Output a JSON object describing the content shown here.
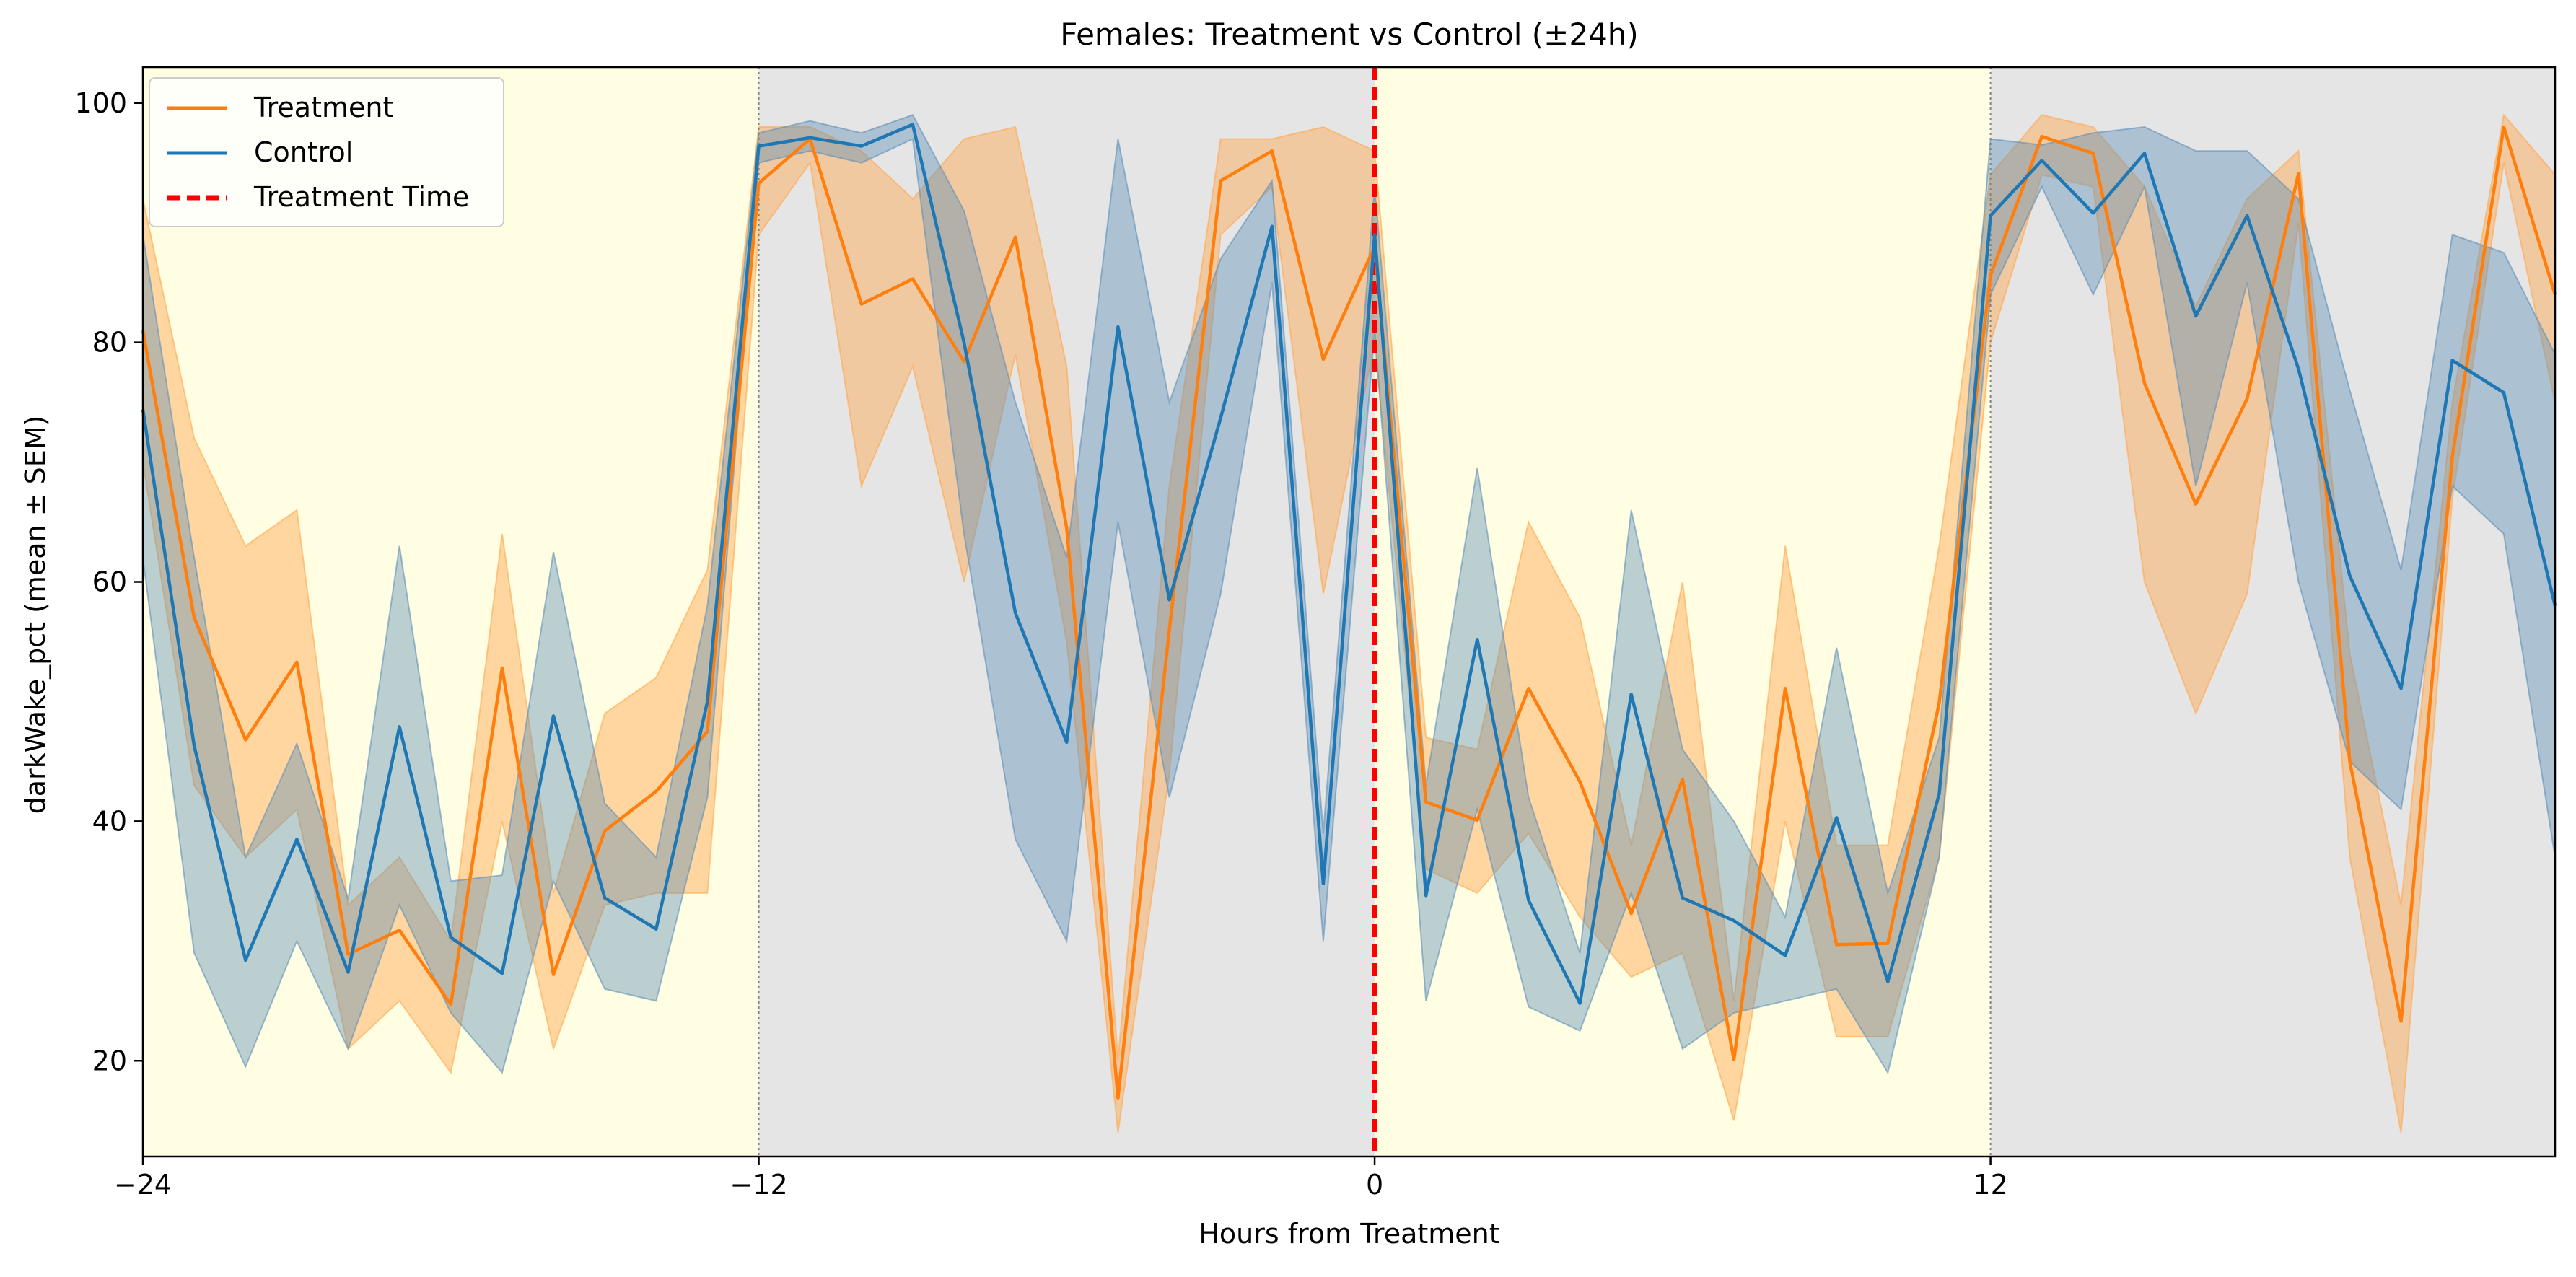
{
  "chart_data": {
    "type": "line",
    "title": "Females: Treatment vs Control (±24h)",
    "xlabel": "Hours from Treatment",
    "ylabel": "darkWake_pct (mean ± SEM)",
    "xlim": [
      -24,
      23
    ],
    "ylim": [
      12,
      103
    ],
    "xticks": [
      -24,
      -12,
      0,
      12
    ],
    "xtick_labels": [
      "−24",
      "−12",
      "0",
      "12"
    ],
    "yticks": [
      20,
      40,
      60,
      80,
      100
    ],
    "ytick_labels": [
      "20",
      "40",
      "60",
      "80",
      "100"
    ],
    "grid": false,
    "legend_position": "upper-left",
    "background_periods": [
      {
        "phase": "light",
        "start": -24,
        "end": -12,
        "color": "#fffee3"
      },
      {
        "phase": "dark",
        "start": -12,
        "end": 0,
        "color": "#e5e5e5"
      },
      {
        "phase": "light",
        "start": 0,
        "end": 12,
        "color": "#fffee3"
      },
      {
        "phase": "dark",
        "start": 12,
        "end": 23,
        "color": "#e5e5e5"
      }
    ],
    "x": [
      -24,
      -23,
      -22,
      -21,
      -20,
      -19,
      -18,
      -17,
      -16,
      -15,
      -14,
      -13,
      -12,
      -11,
      -10,
      -9,
      -8,
      -7,
      -6,
      -5,
      -4,
      -3,
      -2,
      -1,
      0,
      1,
      2,
      3,
      4,
      5,
      6,
      7,
      8,
      9,
      10,
      11,
      12,
      13,
      14,
      15,
      16,
      17,
      18,
      19,
      20,
      21,
      22,
      23
    ],
    "series": [
      {
        "name": "Treatment",
        "color": "#ff7f0e",
        "fill_color": "#ffa64d",
        "values": [
          81,
          57,
          46.8,
          53.3,
          28.9,
          30.9,
          24.7,
          52.8,
          27.2,
          39.2,
          42.5,
          47.5,
          93.3,
          97,
          83.2,
          85.3,
          78.4,
          88.8,
          64.5,
          16.9,
          56,
          93.5,
          96,
          78.6,
          88,
          41.6,
          40.1,
          51.1,
          43.3,
          32.3,
          43.5,
          20.1,
          51.1,
          29.7,
          29.8,
          49.9,
          85.6,
          97.2,
          95.8,
          76.6,
          66.5,
          75.3,
          94.1,
          45,
          23.3,
          70.5,
          98,
          84
        ],
        "lower": [
          70,
          43,
          37,
          41,
          21,
          25,
          19,
          40,
          21,
          33,
          34,
          34,
          89,
          95,
          68,
          78,
          60,
          79,
          55,
          14,
          44,
          89,
          93,
          59,
          80,
          36,
          34,
          39,
          32,
          27,
          29,
          15,
          40,
          22,
          22,
          37,
          80,
          94,
          93,
          60,
          49,
          59,
          90,
          37,
          14,
          67,
          95,
          75
        ],
        "upper": [
          92,
          72,
          63,
          66,
          33,
          37,
          30,
          64,
          34,
          49,
          52,
          61,
          98,
          98,
          96,
          92,
          97,
          98,
          78,
          20,
          68,
          97,
          97,
          98,
          96,
          47,
          46,
          65,
          57,
          38,
          60,
          25,
          63,
          38,
          38,
          63,
          94,
          99,
          98,
          93,
          83,
          92,
          96,
          54,
          33,
          75,
          99,
          94
        ]
      },
      {
        "name": "Control",
        "color": "#1f77b4",
        "fill_color": "#5d8fb8",
        "values": [
          74.4,
          46.3,
          28.4,
          38.5,
          27.4,
          47.9,
          30.3,
          27.3,
          48.8,
          33.6,
          31,
          50,
          96.4,
          97.1,
          96.4,
          98.2,
          80,
          57.4,
          46.6,
          81.3,
          58.5,
          73.7,
          89.7,
          34.8,
          89,
          33.8,
          55.2,
          33.4,
          24.8,
          50.6,
          33.6,
          31.7,
          28.8,
          40.3,
          26.6,
          42.3,
          90.6,
          95.2,
          90.8,
          95.8,
          82.2,
          90.6,
          77.8,
          60.5,
          51.1,
          78.5,
          75.8,
          58
        ]
      }
    ],
    "control_band": {
      "lower": [
        62,
        29,
        19.5,
        30,
        21,
        33,
        24,
        19,
        35,
        26,
        25,
        42,
        95,
        96,
        95,
        97,
        64,
        38.5,
        30,
        65,
        42,
        59,
        85,
        30,
        81,
        25,
        41,
        24.5,
        22.5,
        34,
        21,
        24,
        25,
        26,
        19,
        37,
        84,
        93,
        84,
        93,
        68,
        85,
        60,
        45,
        41,
        68,
        64,
        37
      ],
      "upper": [
        89,
        62,
        37,
        46.5,
        33.5,
        63,
        35,
        35.5,
        62.5,
        41.5,
        37,
        58,
        97.5,
        98.5,
        97.5,
        99,
        91,
        75,
        62,
        97,
        75,
        87,
        93.5,
        39,
        93,
        43,
        69.5,
        42,
        29,
        66,
        46,
        40,
        32,
        54.5,
        34,
        47,
        97,
        96.5,
        97.5,
        98,
        96,
        96,
        92,
        76,
        61,
        89,
        87.5,
        79
      ]
    },
    "vlines": [
      {
        "x": -12,
        "style": "dotted",
        "color": "#808080"
      },
      {
        "x": 12,
        "style": "dotted",
        "color": "#808080"
      },
      {
        "x": 0,
        "style": "dashed",
        "color": "#ff0000",
        "name": "Treatment Time"
      }
    ],
    "legend": [
      {
        "label": "Treatment",
        "color": "#ff7f0e",
        "style": "solid"
      },
      {
        "label": "Control",
        "color": "#1f77b4",
        "style": "solid"
      },
      {
        "label": "Treatment Time",
        "color": "#ff0000",
        "style": "dashed"
      }
    ]
  }
}
